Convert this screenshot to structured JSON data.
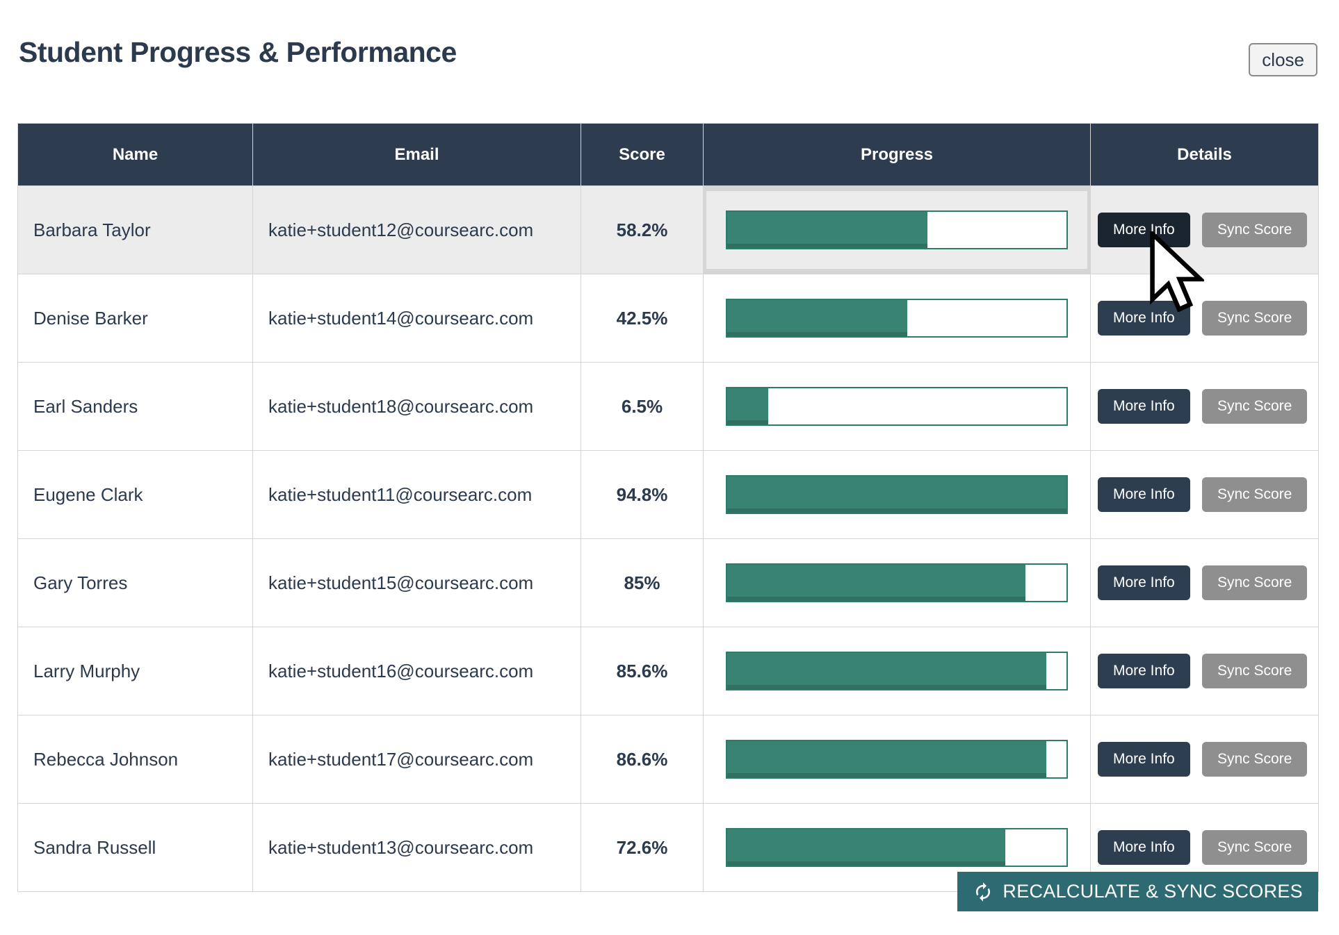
{
  "header": {
    "title": "Student Progress & Performance",
    "close_label": "close"
  },
  "table": {
    "columns": [
      "Name",
      "Email",
      "Score",
      "Progress",
      "Details"
    ],
    "more_info_label": "More Info",
    "sync_score_label": "Sync Score",
    "rows": [
      {
        "name": "Barbara Taylor",
        "email": "katie+student12@coursearc.com",
        "score": "58.2%",
        "progress_percent": 59,
        "highlighted": true
      },
      {
        "name": "Denise Barker",
        "email": "katie+student14@coursearc.com",
        "score": "42.5%",
        "progress_percent": 53,
        "highlighted": false
      },
      {
        "name": "Earl Sanders",
        "email": "katie+student18@coursearc.com",
        "score": "6.5%",
        "progress_percent": 12,
        "highlighted": false
      },
      {
        "name": "Eugene Clark",
        "email": "katie+student11@coursearc.com",
        "score": "94.8%",
        "progress_percent": 100,
        "highlighted": false
      },
      {
        "name": "Gary Torres",
        "email": "katie+student15@coursearc.com",
        "score": "85%",
        "progress_percent": 88,
        "highlighted": false
      },
      {
        "name": "Larry Murphy",
        "email": "katie+student16@coursearc.com",
        "score": "85.6%",
        "progress_percent": 94,
        "highlighted": false
      },
      {
        "name": "Rebecca Johnson",
        "email": "katie+student17@coursearc.com",
        "score": "86.6%",
        "progress_percent": 94,
        "highlighted": false
      },
      {
        "name": "Sandra Russell",
        "email": "katie+student13@coursearc.com",
        "score": "72.6%",
        "progress_percent": 82,
        "highlighted": false
      }
    ]
  },
  "footer": {
    "recalculate_label": "RECALCULATE & SYNC SCORES"
  },
  "icons": {
    "refresh": "refresh-icon",
    "cursor": "mouse-cursor"
  },
  "colors": {
    "header_bg": "#2d3c4e",
    "navy_text": "#2b3a4d",
    "accent_green": "#398372",
    "teal_button": "#2e6a72",
    "gray_button": "#8f8f8f",
    "hover_navy": "#1a2530",
    "row_highlight": "#ececec",
    "grid_line": "#d5d5d5"
  }
}
